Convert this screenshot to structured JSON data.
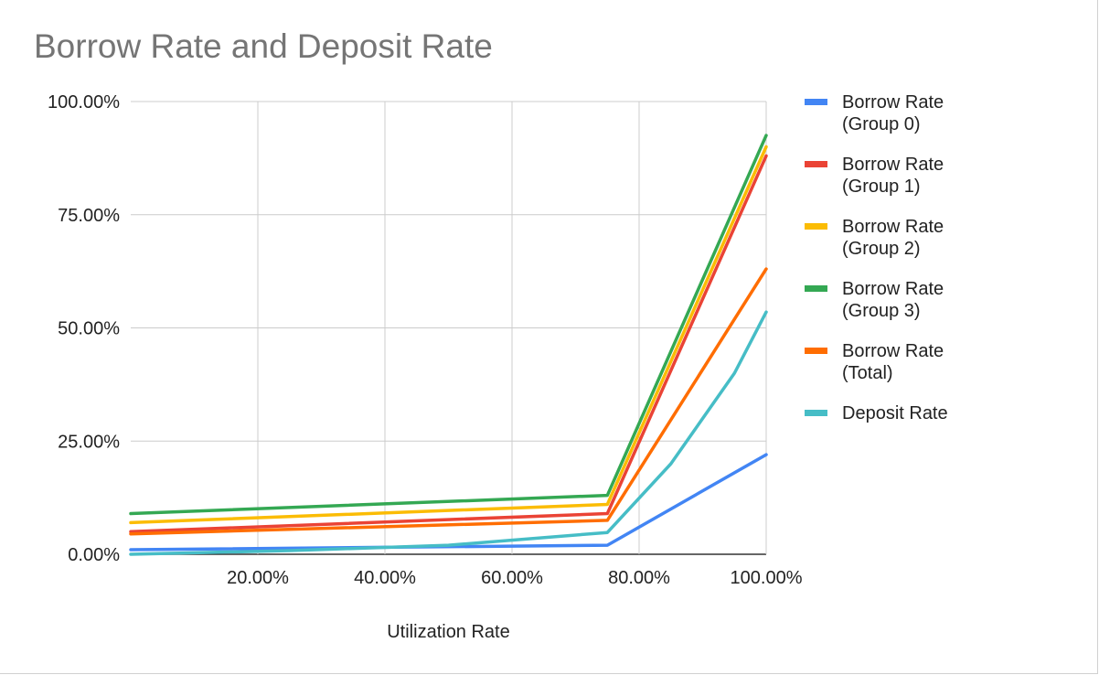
{
  "chart_data": {
    "type": "line",
    "title": "Borrow Rate and Deposit Rate",
    "xlabel": "Utilization Rate",
    "ylabel": "",
    "xlim": [
      0,
      100
    ],
    "ylim": [
      0,
      100
    ],
    "x_ticks": [
      "20.00%",
      "40.00%",
      "60.00%",
      "80.00%",
      "100.00%"
    ],
    "y_ticks": [
      "0.00%",
      "25.00%",
      "50.00%",
      "75.00%",
      "100.00%"
    ],
    "grid": true,
    "legend_position": "right",
    "series": [
      {
        "name": [
          "Borrow Rate",
          "(Group 0)"
        ],
        "color": "#4285f4",
        "points": [
          [
            0,
            1
          ],
          [
            75,
            2
          ],
          [
            100,
            22
          ]
        ]
      },
      {
        "name": [
          "Borrow Rate",
          "(Group 1)"
        ],
        "color": "#ea4335",
        "points": [
          [
            0,
            5
          ],
          [
            75,
            9
          ],
          [
            100,
            88
          ]
        ]
      },
      {
        "name": [
          "Borrow Rate",
          "(Group 2)"
        ],
        "color": "#fbbc04",
        "points": [
          [
            0,
            7
          ],
          [
            75,
            11
          ],
          [
            100,
            90
          ]
        ]
      },
      {
        "name": [
          "Borrow Rate",
          "(Group 3)"
        ],
        "color": "#34a853",
        "points": [
          [
            0,
            9
          ],
          [
            75,
            13
          ],
          [
            100,
            92.5
          ]
        ]
      },
      {
        "name": [
          "Borrow Rate",
          "(Total)"
        ],
        "color": "#ff6d01",
        "points": [
          [
            0,
            4.5
          ],
          [
            75,
            7.5
          ],
          [
            100,
            63
          ]
        ]
      },
      {
        "name": [
          "Deposit Rate"
        ],
        "color": "#46bdc6",
        "points": [
          [
            0,
            0
          ],
          [
            25,
            0.8
          ],
          [
            50,
            2
          ],
          [
            75,
            4.8
          ],
          [
            85,
            20
          ],
          [
            95,
            40
          ],
          [
            100,
            53.5
          ]
        ]
      }
    ]
  }
}
